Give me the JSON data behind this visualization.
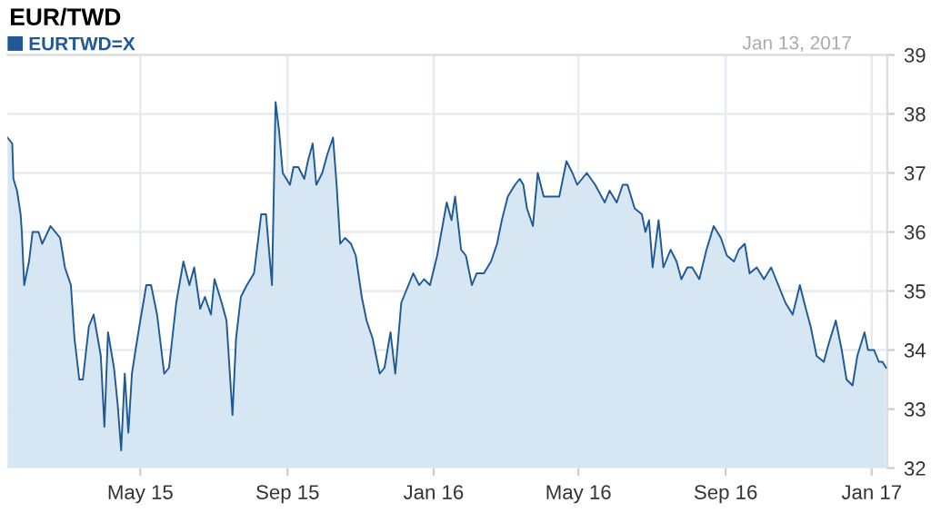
{
  "chart_data": {
    "type": "area",
    "title": "EUR/TWD",
    "annotations": [
      "Jan 13, 2017"
    ],
    "x": [
      "2015-01-10",
      "2015-01-14",
      "2015-01-15",
      "2015-01-18",
      "2015-01-21",
      "2015-01-22",
      "2015-01-24",
      "2015-01-28",
      "2015-01-31",
      "2015-02-05",
      "2015-02-08",
      "2015-02-15",
      "2015-02-23",
      "2015-02-27",
      "2015-03-04",
      "2015-03-07",
      "2015-03-11",
      "2015-03-14",
      "2015-03-19",
      "2015-03-23",
      "2015-03-29",
      "2015-04-01",
      "2015-04-04",
      "2015-04-09",
      "2015-04-12",
      "2015-04-15",
      "2015-04-18",
      "2015-04-21",
      "2015-04-24",
      "2015-04-27",
      "2015-05-01",
      "2015-05-06",
      "2015-05-10",
      "2015-05-15",
      "2015-05-21",
      "2015-05-25",
      "2015-05-31",
      "2015-06-06",
      "2015-06-11",
      "2015-06-15",
      "2015-06-20",
      "2015-06-24",
      "2015-06-29",
      "2015-07-02",
      "2015-07-08",
      "2015-07-12",
      "2015-07-17",
      "2015-07-20",
      "2015-07-24",
      "2015-07-29",
      "2015-08-04",
      "2015-08-10",
      "2015-08-14",
      "2015-08-19",
      "2015-08-22",
      "2015-08-25",
      "2015-08-28",
      "2015-09-03",
      "2015-09-06",
      "2015-09-10",
      "2015-09-15",
      "2015-09-18",
      "2015-09-22",
      "2015-09-25",
      "2015-09-30",
      "2015-10-04",
      "2015-10-09",
      "2015-10-12",
      "2015-10-15",
      "2015-10-19",
      "2015-10-24",
      "2015-10-28",
      "2015-11-02",
      "2015-11-06",
      "2015-11-11",
      "2015-11-17",
      "2015-11-21",
      "2015-11-26",
      "2015-11-30",
      "2015-12-05",
      "2015-12-11",
      "2015-12-15",
      "2015-12-20",
      "2015-12-24",
      "2015-12-29",
      "2016-01-04",
      "2016-01-12",
      "2016-01-16",
      "2016-01-19",
      "2016-01-24",
      "2016-01-28",
      "2016-02-02",
      "2016-02-06",
      "2016-02-12",
      "2016-02-18",
      "2016-02-23",
      "2016-02-27",
      "2016-03-03",
      "2016-03-09",
      "2016-03-13",
      "2016-03-16",
      "2016-03-19",
      "2016-03-24",
      "2016-03-28",
      "2016-04-02",
      "2016-04-08",
      "2016-04-15",
      "2016-04-21",
      "2016-04-26",
      "2016-04-30",
      "2016-05-08",
      "2016-05-15",
      "2016-05-23",
      "2016-05-27",
      "2016-06-02",
      "2016-06-07",
      "2016-06-11",
      "2016-06-17",
      "2016-06-23",
      "2016-06-26",
      "2016-06-29",
      "2016-07-02",
      "2016-07-07",
      "2016-07-11",
      "2016-07-17",
      "2016-07-22",
      "2016-07-26",
      "2016-07-31",
      "2016-08-04",
      "2016-08-10",
      "2016-08-16",
      "2016-08-22",
      "2016-08-28",
      "2016-09-02",
      "2016-09-08",
      "2016-09-12",
      "2016-09-17",
      "2016-09-21",
      "2016-09-27",
      "2016-10-03",
      "2016-10-09",
      "2016-10-15",
      "2016-10-21",
      "2016-10-27",
      "2016-11-02",
      "2016-11-07",
      "2016-11-11",
      "2016-11-16",
      "2016-11-22",
      "2016-11-26",
      "2016-12-02",
      "2016-12-07",
      "2016-12-11",
      "2016-12-16",
      "2016-12-20",
      "2016-12-26",
      "2016-12-29",
      "2017-01-03",
      "2017-01-07",
      "2017-01-10",
      "2017-01-13"
    ],
    "series": [
      {
        "name": "EURTWD=X",
        "color": "#1f5a96",
        "values": [
          37.6,
          37.5,
          36.9,
          36.7,
          36.3,
          36.0,
          35.1,
          35.5,
          36.0,
          36.0,
          35.8,
          36.1,
          35.9,
          35.4,
          35.1,
          34.2,
          33.5,
          33.5,
          34.4,
          34.6,
          33.9,
          32.7,
          34.3,
          33.7,
          33.1,
          32.3,
          33.6,
          32.6,
          33.6,
          34.0,
          34.5,
          35.1,
          35.1,
          34.6,
          33.6,
          33.7,
          34.8,
          35.5,
          35.1,
          35.4,
          34.7,
          34.9,
          34.6,
          35.2,
          34.8,
          34.5,
          32.9,
          34.2,
          34.9,
          35.1,
          35.3,
          36.3,
          36.3,
          35.1,
          38.2,
          37.7,
          37.0,
          36.8,
          37.1,
          37.1,
          36.9,
          37.2,
          37.5,
          36.8,
          37.0,
          37.3,
          37.6,
          36.8,
          35.8,
          35.9,
          35.8,
          35.6,
          34.9,
          34.5,
          34.2,
          33.6,
          33.7,
          34.3,
          33.6,
          34.8,
          35.1,
          35.3,
          35.1,
          35.2,
          35.1,
          35.6,
          36.5,
          36.2,
          36.6,
          35.7,
          35.6,
          35.1,
          35.3,
          35.3,
          35.5,
          35.8,
          36.2,
          36.6,
          36.8,
          36.9,
          36.8,
          36.4,
          36.1,
          37.0,
          36.6,
          36.6,
          36.6,
          37.2,
          37.0,
          36.8,
          37.0,
          36.8,
          36.5,
          36.7,
          36.5,
          36.8,
          36.8,
          36.4,
          36.3,
          36.0,
          36.2,
          35.4,
          36.2,
          35.4,
          35.7,
          35.5,
          35.2,
          35.4,
          35.4,
          35.2,
          35.7,
          36.1,
          35.9,
          35.6,
          35.5,
          35.7,
          35.8,
          35.3,
          35.4,
          35.2,
          35.4,
          35.1,
          34.8,
          34.6,
          35.1,
          34.7,
          34.4,
          33.9,
          33.8,
          34.1,
          34.5,
          34.0,
          33.5,
          33.4,
          33.9,
          34.3,
          34.0,
          34.0,
          33.8,
          33.8,
          33.7
        ]
      }
    ],
    "xlim": [
      "2015-01-10",
      "2017-01-14"
    ],
    "xticks": [
      {
        "value": "2015-05-01",
        "label": "May 15"
      },
      {
        "value": "2015-09-01",
        "label": "Sep 15"
      },
      {
        "value": "2016-01-01",
        "label": "Jan 16"
      },
      {
        "value": "2016-05-01",
        "label": "May 16"
      },
      {
        "value": "2016-09-01",
        "label": "Sep 16"
      },
      {
        "value": "2017-01-01",
        "label": "Jan 17"
      }
    ],
    "ylim": [
      32,
      39
    ],
    "yticks": [
      32,
      33,
      34,
      35,
      36,
      37,
      38,
      39
    ],
    "grid": true,
    "legend": "top left"
  }
}
